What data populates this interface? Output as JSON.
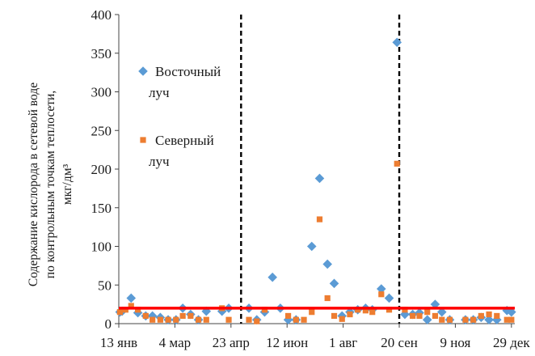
{
  "chart_data": {
    "type": "scatter",
    "ylabel_lines": [
      "Содержание кислорода в сетевой воде",
      "по контрольным точкам теплосети,",
      "мкг/дм³"
    ],
    "ylim": [
      0,
      400
    ],
    "yticks": [
      0,
      50,
      100,
      150,
      200,
      250,
      300,
      350,
      400
    ],
    "xlim": [
      0,
      353
    ],
    "xtick_labels": [
      "13 янв",
      "4 мар",
      "23 апр",
      "12 июн",
      "1 авг",
      "20 сен",
      "9 ноя",
      "29 дек"
    ],
    "xtick_values": [
      0,
      50,
      100,
      150,
      200,
      250,
      300,
      350
    ],
    "threshold": {
      "value": 20,
      "color": "#ff0000"
    },
    "vertical_lines": [
      109,
      250
    ],
    "legend": {
      "position": "top-left",
      "entries": [
        {
          "line1": "Восточный",
          "line2": "луч",
          "marker": "diamond",
          "color": "#5b9bd5"
        },
        {
          "line1": "Северный",
          "line2": "луч",
          "marker": "square",
          "color": "#ed7d31"
        }
      ]
    },
    "series": [
      {
        "name": "Восточный луч",
        "marker": "diamond",
        "color": "#5b9bd5",
        "points": [
          {
            "x": 1,
            "y": 15
          },
          {
            "x": 3,
            "y": 16
          },
          {
            "x": 11,
            "y": 33
          },
          {
            "x": 17,
            "y": 14
          },
          {
            "x": 24,
            "y": 10
          },
          {
            "x": 30,
            "y": 10
          },
          {
            "x": 37,
            "y": 8
          },
          {
            "x": 44,
            "y": 5
          },
          {
            "x": 51,
            "y": 5
          },
          {
            "x": 57,
            "y": 20
          },
          {
            "x": 64,
            "y": 12
          },
          {
            "x": 71,
            "y": 5
          },
          {
            "x": 78,
            "y": 16
          },
          {
            "x": 92,
            "y": 16
          },
          {
            "x": 98,
            "y": 20
          },
          {
            "x": 116,
            "y": 20
          },
          {
            "x": 123,
            "y": 5
          },
          {
            "x": 130,
            "y": 15
          },
          {
            "x": 137,
            "y": 60
          },
          {
            "x": 144,
            "y": 20
          },
          {
            "x": 151,
            "y": 5
          },
          {
            "x": 158,
            "y": 5
          },
          {
            "x": 172,
            "y": 100
          },
          {
            "x": 179,
            "y": 188
          },
          {
            "x": 186,
            "y": 77
          },
          {
            "x": 192,
            "y": 52
          },
          {
            "x": 199,
            "y": 10
          },
          {
            "x": 206,
            "y": 15
          },
          {
            "x": 213,
            "y": 18
          },
          {
            "x": 220,
            "y": 20
          },
          {
            "x": 226,
            "y": 18
          },
          {
            "x": 234,
            "y": 45
          },
          {
            "x": 241,
            "y": 33
          },
          {
            "x": 248,
            "y": 364
          },
          {
            "x": 255,
            "y": 12
          },
          {
            "x": 262,
            "y": 12
          },
          {
            "x": 268,
            "y": 14
          },
          {
            "x": 275,
            "y": 5
          },
          {
            "x": 282,
            "y": 25
          },
          {
            "x": 288,
            "y": 15
          },
          {
            "x": 295,
            "y": 5
          },
          {
            "x": 309,
            "y": 5
          },
          {
            "x": 316,
            "y": 5
          },
          {
            "x": 323,
            "y": 8
          },
          {
            "x": 330,
            "y": 5
          },
          {
            "x": 337,
            "y": 5
          },
          {
            "x": 346,
            "y": 17
          },
          {
            "x": 350,
            "y": 15
          }
        ]
      },
      {
        "name": "Северный луч",
        "marker": "square",
        "color": "#ed7d31",
        "points": [
          {
            "x": 1,
            "y": 15
          },
          {
            "x": 6,
            "y": 18
          },
          {
            "x": 11,
            "y": 23
          },
          {
            "x": 17,
            "y": 18
          },
          {
            "x": 24,
            "y": 10
          },
          {
            "x": 30,
            "y": 5
          },
          {
            "x": 37,
            "y": 5
          },
          {
            "x": 44,
            "y": 5
          },
          {
            "x": 51,
            "y": 5
          },
          {
            "x": 57,
            "y": 10
          },
          {
            "x": 64,
            "y": 10
          },
          {
            "x": 71,
            "y": 5
          },
          {
            "x": 78,
            "y": 5
          },
          {
            "x": 92,
            "y": 20
          },
          {
            "x": 98,
            "y": 5
          },
          {
            "x": 116,
            "y": 5
          },
          {
            "x": 123,
            "y": 3
          },
          {
            "x": 130,
            "y": 18
          },
          {
            "x": 151,
            "y": 10
          },
          {
            "x": 158,
            "y": 5
          },
          {
            "x": 165,
            "y": 5
          },
          {
            "x": 172,
            "y": 15
          },
          {
            "x": 179,
            "y": 135
          },
          {
            "x": 186,
            "y": 33
          },
          {
            "x": 192,
            "y": 10
          },
          {
            "x": 199,
            "y": 6
          },
          {
            "x": 206,
            "y": 12
          },
          {
            "x": 213,
            "y": 18
          },
          {
            "x": 220,
            "y": 17
          },
          {
            "x": 226,
            "y": 15
          },
          {
            "x": 234,
            "y": 38
          },
          {
            "x": 241,
            "y": 18
          },
          {
            "x": 248,
            "y": 207
          },
          {
            "x": 255,
            "y": 18
          },
          {
            "x": 262,
            "y": 10
          },
          {
            "x": 268,
            "y": 10
          },
          {
            "x": 275,
            "y": 15
          },
          {
            "x": 282,
            "y": 10
          },
          {
            "x": 288,
            "y": 5
          },
          {
            "x": 295,
            "y": 5
          },
          {
            "x": 309,
            "y": 5
          },
          {
            "x": 316,
            "y": 5
          },
          {
            "x": 323,
            "y": 10
          },
          {
            "x": 330,
            "y": 12
          },
          {
            "x": 337,
            "y": 10
          },
          {
            "x": 346,
            "y": 5
          },
          {
            "x": 350,
            "y": 5
          }
        ]
      }
    ]
  }
}
